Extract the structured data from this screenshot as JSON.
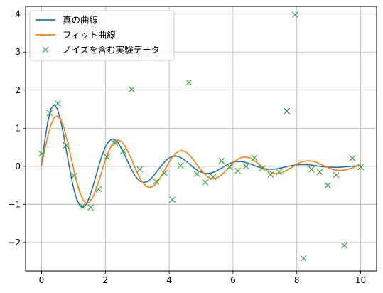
{
  "chart_data": {
    "type": "line",
    "title": "",
    "xlabel": "",
    "ylabel": "",
    "xlim": [
      -0.5,
      10.5
    ],
    "ylim": [
      -2.75,
      4.2
    ],
    "xticks": [
      0,
      2,
      4,
      6,
      8,
      10
    ],
    "yticks": [
      -2,
      -1,
      0,
      1,
      2,
      3,
      4
    ],
    "xtick_labels": [
      "0",
      "2",
      "4",
      "6",
      "8",
      "10"
    ],
    "ytick_labels": [
      "−2",
      "−1",
      "0",
      "1",
      "2",
      "3",
      "4"
    ],
    "grid": true,
    "legend_position": "top-left",
    "series": [
      {
        "name": "真の曲線",
        "kind": "line",
        "color": "#1f77b4",
        "x": [
          0,
          0.1,
          0.2,
          0.3,
          0.4,
          0.5,
          0.6,
          0.7,
          0.8,
          0.9,
          1.0,
          1.1,
          1.2,
          1.3,
          1.4,
          1.5,
          1.6,
          1.7,
          1.8,
          1.9,
          2.0,
          2.1,
          2.2,
          2.3,
          2.4,
          2.5,
          2.6,
          2.7,
          2.8,
          2.9,
          3.0,
          3.1,
          3.2,
          3.3,
          3.4,
          3.5,
          3.6,
          3.7,
          3.8,
          3.9,
          4.0,
          4.1,
          4.2,
          4.3,
          4.4,
          4.5,
          4.6,
          4.7,
          4.8,
          4.9,
          5.0,
          5.1,
          5.2,
          5.3,
          5.4,
          5.5,
          5.6,
          5.7,
          5.8,
          5.9,
          6.0,
          6.1,
          6.2,
          6.3,
          6.4,
          6.5,
          6.6,
          6.7,
          6.8,
          6.9,
          7.0,
          7.1,
          7.2,
          7.3,
          7.4,
          7.5,
          7.6,
          7.7,
          7.8,
          7.9,
          8.0,
          8.1,
          8.2,
          8.3,
          8.4,
          8.5,
          8.6,
          8.7,
          8.8,
          8.9,
          9.0,
          9.1,
          9.2,
          9.3,
          9.4,
          9.5,
          9.6,
          9.7,
          9.8,
          9.9,
          10.0
        ],
        "y": [
          0.0,
          0.657,
          1.189,
          1.52,
          1.62,
          1.503,
          1.206,
          0.787,
          0.312,
          -0.157,
          -0.56,
          -0.859,
          -1.034,
          -1.078,
          -0.999,
          -0.817,
          -0.562,
          -0.269,
          0.028,
          0.295,
          0.507,
          0.648,
          0.711,
          0.696,
          0.614,
          0.479,
          0.31,
          0.127,
          -0.05,
          -0.205,
          -0.324,
          -0.398,
          -0.425,
          -0.407,
          -0.35,
          -0.262,
          -0.156,
          -0.044,
          0.062,
          0.152,
          0.219,
          0.259,
          0.27,
          0.254,
          0.213,
          0.154,
          0.084,
          0.012,
          -0.056,
          -0.114,
          -0.156,
          -0.181,
          -0.188,
          -0.178,
          -0.152,
          -0.113,
          -0.066,
          -0.016,
          0.033,
          0.074,
          0.104,
          0.121,
          0.125,
          0.118,
          0.1,
          0.074,
          0.043,
          0.011,
          -0.02,
          -0.046,
          -0.064,
          -0.075,
          -0.077,
          -0.072,
          -0.061,
          -0.045,
          -0.026,
          -0.006,
          0.013,
          0.028,
          0.039,
          0.045,
          0.046,
          0.043,
          0.036,
          0.026,
          0.015,
          0.003,
          -0.008,
          -0.017,
          -0.023,
          -0.026,
          -0.027,
          -0.025,
          -0.021,
          -0.015,
          -0.008,
          -0.001,
          0.005,
          0.01,
          0.013
        ]
      },
      {
        "name": "フィット曲線",
        "kind": "line",
        "color": "#ff7f0e",
        "x": [
          0,
          0.1,
          0.2,
          0.3,
          0.4,
          0.5,
          0.6,
          0.7,
          0.8,
          0.9,
          1.0,
          1.1,
          1.2,
          1.3,
          1.4,
          1.5,
          1.6,
          1.7,
          1.8,
          1.9,
          2.0,
          2.1,
          2.2,
          2.3,
          2.4,
          2.5,
          2.6,
          2.7,
          2.8,
          2.9,
          3.0,
          3.1,
          3.2,
          3.3,
          3.4,
          3.5,
          3.6,
          3.7,
          3.8,
          3.9,
          4.0,
          4.1,
          4.2,
          4.3,
          4.4,
          4.5,
          4.6,
          4.7,
          4.8,
          4.9,
          5.0,
          5.1,
          5.2,
          5.3,
          5.4,
          5.5,
          5.6,
          5.7,
          5.8,
          5.9,
          6.0,
          6.1,
          6.2,
          6.3,
          6.4,
          6.5,
          6.6,
          6.7,
          6.8,
          6.9,
          7.0,
          7.1,
          7.2,
          7.3,
          7.4,
          7.5,
          7.6,
          7.7,
          7.8,
          7.9,
          8.0,
          8.1,
          8.2,
          8.3,
          8.4,
          8.5,
          8.6,
          8.7,
          8.8,
          8.9,
          9.0,
          9.1,
          9.2,
          9.3,
          9.4,
          9.5,
          9.6,
          9.7,
          9.8,
          9.9,
          10.0
        ],
        "y": [
          0.0,
          0.424,
          0.806,
          1.103,
          1.281,
          1.323,
          1.227,
          1.006,
          0.691,
          0.323,
          -0.055,
          -0.405,
          -0.69,
          -0.884,
          -0.971,
          -0.948,
          -0.827,
          -0.627,
          -0.376,
          -0.104,
          0.157,
          0.384,
          0.556,
          0.661,
          0.693,
          0.653,
          0.55,
          0.398,
          0.214,
          0.018,
          -0.17,
          -0.333,
          -0.457,
          -0.533,
          -0.555,
          -0.525,
          -0.447,
          -0.331,
          -0.189,
          -0.036,
          0.111,
          0.239,
          0.336,
          0.394,
          0.411,
          0.386,
          0.324,
          0.233,
          0.124,
          0.007,
          -0.104,
          -0.2,
          -0.272,
          -0.314,
          -0.324,
          -0.302,
          -0.252,
          -0.18,
          -0.095,
          -0.005,
          0.081,
          0.155,
          0.209,
          0.239,
          0.245,
          0.227,
          0.188,
          0.132,
          0.067,
          -0.002,
          -0.068,
          -0.124,
          -0.164,
          -0.187,
          -0.19,
          -0.175,
          -0.143,
          -0.099,
          -0.048,
          0.005,
          0.055,
          0.097,
          0.127,
          0.143,
          0.145,
          0.133,
          0.107,
          0.073,
          0.034,
          -0.006,
          -0.043,
          -0.074,
          -0.096,
          -0.108,
          -0.109,
          -0.099,
          -0.08,
          -0.053,
          -0.022,
          0.008,
          0.036
        ]
      },
      {
        "name": "ノイズを含む実験データ",
        "kind": "scatter",
        "marker": "x",
        "color": "#2ca02c",
        "x": [
          0.0,
          0.26,
          0.51,
          0.77,
          1.02,
          1.28,
          1.54,
          1.79,
          2.05,
          2.31,
          2.56,
          2.82,
          3.08,
          3.33,
          3.59,
          3.85,
          4.1,
          4.36,
          4.62,
          4.87,
          5.13,
          5.38,
          5.64,
          5.9,
          6.15,
          6.41,
          6.67,
          6.92,
          7.18,
          7.44,
          7.69,
          7.95,
          8.21,
          8.46,
          8.72,
          8.97,
          9.23,
          9.49,
          9.74,
          10.0
        ],
        "y": [
          0.33,
          1.4,
          1.65,
          0.55,
          -0.25,
          -1.05,
          -1.08,
          -0.6,
          0.25,
          0.6,
          0.4,
          2.02,
          -0.08,
          2.92,
          -0.4,
          -0.18,
          -0.88,
          0.02,
          2.2,
          -0.2,
          -0.42,
          -0.28,
          0.14,
          -0.02,
          -0.12,
          0.0,
          0.22,
          -0.05,
          -0.22,
          -0.15,
          1.45,
          3.98,
          -2.42,
          -0.08,
          -0.15,
          -0.5,
          -0.23,
          -2.08,
          0.21,
          -0.02
        ]
      }
    ]
  }
}
